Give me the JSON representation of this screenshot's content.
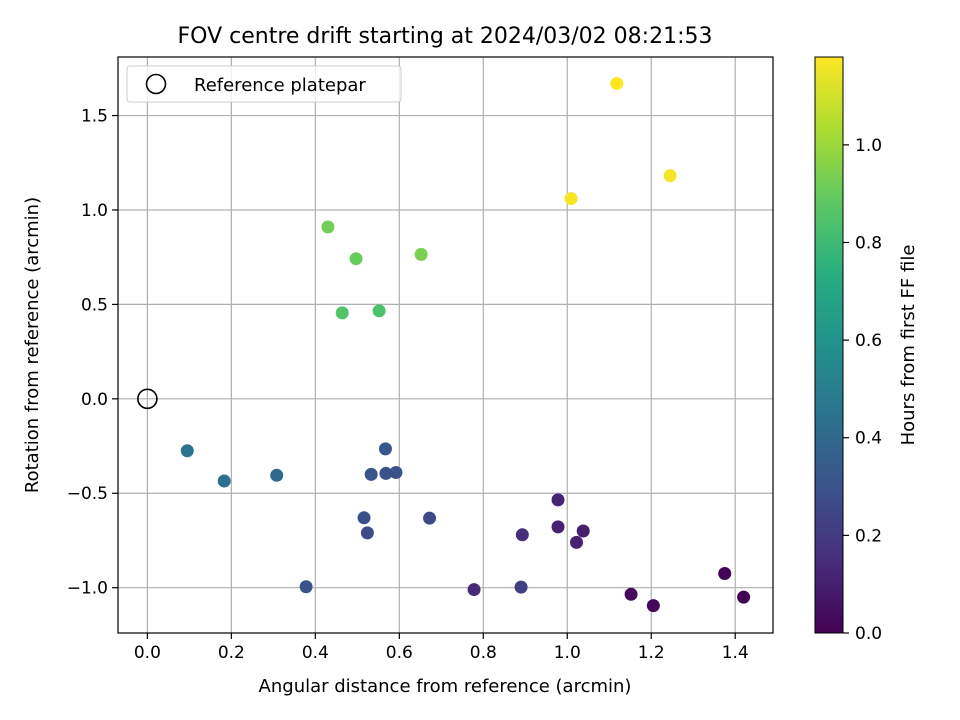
{
  "chart_data": {
    "type": "scatter",
    "title": "FOV centre drift starting at 2024/03/02 08:21:53",
    "xlabel": "Angular distance from reference (arcmin)",
    "ylabel": "Rotation from reference (arcmin)",
    "xlim": [
      -0.07,
      1.49
    ],
    "ylim": [
      -1.24,
      1.81
    ],
    "xticks": [
      0.0,
      0.2,
      0.4,
      0.6,
      0.8,
      1.0,
      1.2,
      1.4
    ],
    "xtick_labels": [
      "0.0",
      "0.2",
      "0.4",
      "0.6",
      "0.8",
      "1.0",
      "1.2",
      "1.4"
    ],
    "yticks": [
      -1.0,
      -0.5,
      0.0,
      0.5,
      1.0,
      1.5
    ],
    "ytick_labels": [
      "−1.0",
      "−0.5",
      "0.0",
      "0.5",
      "1.0",
      "1.5"
    ],
    "grid": true,
    "legend_position": "top-left",
    "legend_label": "Reference platepar",
    "reference_point": {
      "x": 0.0,
      "y": 0.0
    },
    "colorbar": {
      "label": "Hours from first FF file",
      "colormap": "viridis",
      "range": [
        0.0,
        1.18
      ],
      "ticks": [
        0.0,
        0.2,
        0.4,
        0.6,
        0.8,
        1.0
      ],
      "tick_labels": [
        "0.0",
        "0.2",
        "0.4",
        "0.6",
        "0.8",
        "1.0"
      ]
    },
    "points": [
      {
        "x": 0.095,
        "y": -0.275,
        "hours": 0.45
      },
      {
        "x": 0.183,
        "y": -0.435,
        "hours": 0.43
      },
      {
        "x": 0.308,
        "y": -0.405,
        "hours": 0.4
      },
      {
        "x": 0.378,
        "y": -0.995,
        "hours": 0.3
      },
      {
        "x": 0.567,
        "y": -0.265,
        "hours": 0.32
      },
      {
        "x": 0.533,
        "y": -0.4,
        "hours": 0.31
      },
      {
        "x": 0.568,
        "y": -0.395,
        "hours": 0.3
      },
      {
        "x": 0.592,
        "y": -0.39,
        "hours": 0.29
      },
      {
        "x": 0.516,
        "y": -0.63,
        "hours": 0.28
      },
      {
        "x": 0.524,
        "y": -0.71,
        "hours": 0.27
      },
      {
        "x": 0.672,
        "y": -0.632,
        "hours": 0.26
      },
      {
        "x": 0.778,
        "y": -1.01,
        "hours": 0.14
      },
      {
        "x": 0.89,
        "y": -0.997,
        "hours": 0.22
      },
      {
        "x": 0.893,
        "y": -0.72,
        "hours": 0.15
      },
      {
        "x": 0.978,
        "y": -0.535,
        "hours": 0.12
      },
      {
        "x": 0.978,
        "y": -0.678,
        "hours": 0.11
      },
      {
        "x": 1.022,
        "y": -0.76,
        "hours": 0.11
      },
      {
        "x": 1.038,
        "y": -0.7,
        "hours": 0.1
      },
      {
        "x": 1.152,
        "y": -1.035,
        "hours": 0.03
      },
      {
        "x": 1.205,
        "y": -1.095,
        "hours": 0.02
      },
      {
        "x": 1.375,
        "y": -0.925,
        "hours": 0.01
      },
      {
        "x": 1.42,
        "y": -1.05,
        "hours": 0.0
      },
      {
        "x": 0.43,
        "y": 0.91,
        "hours": 0.92
      },
      {
        "x": 0.497,
        "y": 0.742,
        "hours": 0.9
      },
      {
        "x": 0.464,
        "y": 0.455,
        "hours": 0.85
      },
      {
        "x": 0.552,
        "y": 0.466,
        "hours": 0.84
      },
      {
        "x": 0.652,
        "y": 0.765,
        "hours": 0.94
      },
      {
        "x": 1.009,
        "y": 1.06,
        "hours": 1.17
      },
      {
        "x": 1.118,
        "y": 1.67,
        "hours": 1.18
      },
      {
        "x": 1.245,
        "y": 1.182,
        "hours": 1.16
      }
    ]
  }
}
